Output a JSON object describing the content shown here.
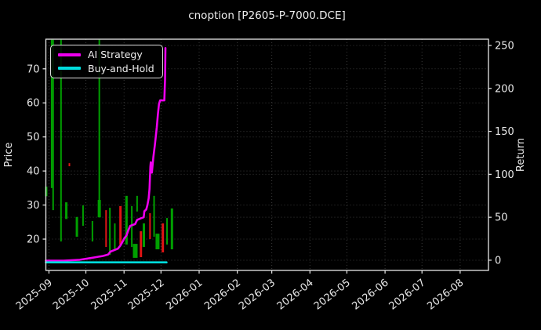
{
  "title": "cnoption [P2605-P-7000.DCE]",
  "legend": {
    "items": [
      {
        "label": "AI Strategy",
        "color": "#ee00ee"
      },
      {
        "label": "Buy-and-Hold",
        "color": "#00dddd"
      }
    ]
  },
  "axes": {
    "left": {
      "label": "Price",
      "ticks": [
        20,
        30,
        40,
        50,
        60,
        70
      ],
      "range": [
        10.8,
        78.7
      ]
    },
    "right": {
      "label": "Return",
      "ticks": [
        0,
        50,
        100,
        150,
        200,
        250
      ],
      "range": [
        -11.9,
        257.3
      ]
    },
    "x": {
      "tick_labels": [
        "2025-09",
        "2025-10",
        "2025-11",
        "2025-12",
        "2026-01",
        "2026-02",
        "2026-03",
        "2026-04",
        "2026-05",
        "2026-06",
        "2026-07",
        "2026-08"
      ],
      "tick_day_offsets": [
        0,
        30,
        61,
        91,
        122,
        153,
        181,
        212,
        242,
        273,
        303,
        334
      ],
      "range_days": [
        -2.5,
        357
      ]
    }
  },
  "colors": {
    "bg": "#000000",
    "fg": "#e8e8e8",
    "grid": "#3a3a3a",
    "up": "#00a000",
    "down": "#e01414",
    "ai": "#ee00ee",
    "bah": "#00dddd"
  },
  "chart_data": {
    "type": "line+ohlc",
    "x_unit": "days_from_2025-09-01",
    "title": "cnoption [P2605-P-7000.DCE]",
    "ylabel_left": "Price",
    "ylabel_right": "Return",
    "series": [
      {
        "name": "AI Strategy",
        "axis": "return",
        "color": "#ee00ee",
        "width": 2.6,
        "points": [
          [
            -2.5,
            -0.5
          ],
          [
            12,
            -0.5
          ],
          [
            25,
            0.5
          ],
          [
            34,
            2.5
          ],
          [
            38,
            3.5
          ],
          [
            44,
            5
          ],
          [
            48,
            6.5
          ],
          [
            50,
            10
          ],
          [
            53.5,
            12
          ],
          [
            56,
            13.5
          ],
          [
            58,
            17
          ],
          [
            60,
            22
          ],
          [
            61,
            25
          ],
          [
            63,
            29
          ],
          [
            64.5,
            35
          ],
          [
            66,
            40
          ],
          [
            70,
            42
          ],
          [
            71.6,
            47
          ],
          [
            75,
            49
          ],
          [
            77,
            50
          ],
          [
            77.5,
            57
          ],
          [
            79,
            59
          ],
          [
            80,
            64
          ],
          [
            81,
            72
          ],
          [
            81.7,
            83
          ],
          [
            82,
            95
          ],
          [
            82.4,
            109
          ],
          [
            82.7,
            114
          ],
          [
            83.6,
            102
          ],
          [
            84.8,
            120
          ],
          [
            86,
            134
          ],
          [
            87.6,
            155
          ],
          [
            88.5,
            170
          ],
          [
            89.4,
            182
          ],
          [
            90.3,
            186
          ],
          [
            93.7,
            186
          ],
          [
            94.3,
            210
          ],
          [
            94.6,
            247
          ]
        ]
      },
      {
        "name": "Buy-and-Hold",
        "axis": "return",
        "color": "#00dddd",
        "width": 2.6,
        "points": [
          [
            -2.5,
            -2.5
          ],
          [
            95.5,
            -2.5
          ]
        ]
      }
    ],
    "price_bars": [
      {
        "x": -2.2,
        "hi": 35.4,
        "lo": 32.6,
        "w": 3,
        "dir": "up"
      },
      {
        "x": 2.2,
        "hi": 80.0,
        "lo": 35.0,
        "w": 2,
        "dir": "up"
      },
      {
        "x": 3.4,
        "hi": 80.0,
        "lo": 28.5,
        "w": 2,
        "dir": "up"
      },
      {
        "x": 9.8,
        "hi": 80.0,
        "lo": 19.3,
        "w": 2,
        "dir": "up"
      },
      {
        "x": 14.1,
        "hi": 30.8,
        "lo": 25.9,
        "w": 3,
        "dir": "up"
      },
      {
        "x": 16.6,
        "hi": 42.3,
        "lo": 41.4,
        "w": 2,
        "dir": "down"
      },
      {
        "x": 22.7,
        "hi": 26.5,
        "lo": 20.7,
        "w": 3,
        "dir": "up"
      },
      {
        "x": 27.7,
        "hi": 29.9,
        "lo": 23.9,
        "w": 2,
        "dir": "up"
      },
      {
        "x": 35.3,
        "hi": 25.3,
        "lo": 19.3,
        "w": 2,
        "dir": "up"
      },
      {
        "x": 40.9,
        "hi": 80.0,
        "lo": 26.4,
        "w": 2,
        "dir": "up"
      },
      {
        "x": 40.9,
        "hi": 31.5,
        "lo": 26.4,
        "w": 4,
        "dir": "up"
      },
      {
        "x": 46.4,
        "hi": 28.5,
        "lo": 17.7,
        "w": 2,
        "dir": "down"
      },
      {
        "x": 49.5,
        "hi": 29.2,
        "lo": 15.4,
        "w": 2,
        "dir": "up"
      },
      {
        "x": 53.5,
        "hi": 24.6,
        "lo": 17.0,
        "w": 2,
        "dir": "up"
      },
      {
        "x": 58.1,
        "hi": 29.7,
        "lo": 18.4,
        "w": 3,
        "dir": "down"
      },
      {
        "x": 63.0,
        "hi": 32.7,
        "lo": 18.4,
        "w": 3,
        "dir": "up"
      },
      {
        "x": 67.3,
        "hi": 29.7,
        "lo": 17.7,
        "w": 2,
        "dir": "up"
      },
      {
        "x": 70.1,
        "hi": 18.6,
        "lo": 14.5,
        "w": 6,
        "dir": "up"
      },
      {
        "x": 71.6,
        "hi": 32.7,
        "lo": 28.1,
        "w": 2,
        "dir": "up"
      },
      {
        "x": 74.7,
        "hi": 22.3,
        "lo": 14.7,
        "w": 3,
        "dir": "down"
      },
      {
        "x": 77.1,
        "hi": 24.6,
        "lo": 17.7,
        "w": 3,
        "dir": "up"
      },
      {
        "x": 82.1,
        "hi": 27.6,
        "lo": 20.0,
        "w": 2,
        "dir": "down"
      },
      {
        "x": 85.4,
        "hi": 32.7,
        "lo": 20.7,
        "w": 2,
        "dir": "up"
      },
      {
        "x": 88.2,
        "hi": 21.6,
        "lo": 17.0,
        "w": 5,
        "dir": "up"
      },
      {
        "x": 92.5,
        "hi": 24.6,
        "lo": 16.1,
        "w": 3,
        "dir": "down"
      },
      {
        "x": 95.9,
        "hi": 26.2,
        "lo": 18.4,
        "w": 2,
        "dir": "up"
      },
      {
        "x": 99.9,
        "hi": 29.0,
        "lo": 17.0,
        "w": 3,
        "dir": "up"
      }
    ]
  }
}
